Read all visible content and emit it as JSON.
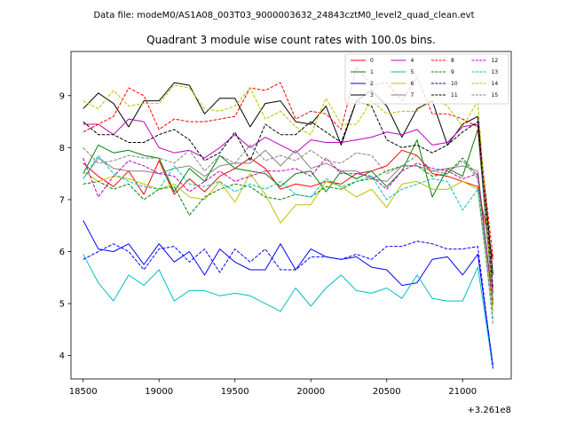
{
  "figure": {
    "suptitle": "Data file: modeM0/AS1A08_003T03_9000003632_24843cztM0_level2_quad_clean.evt"
  },
  "chart_data": {
    "type": "line",
    "title": "Quadrant 3 module wise count rates with 100.0s bins.",
    "xlabel": "",
    "ylabel": "",
    "x_offset_label": "+3.261e8",
    "xlim": [
      18420,
      21320
    ],
    "ylim": [
      3.55,
      9.85
    ],
    "xticks": [
      18500,
      19000,
      19500,
      20000,
      20500,
      21000
    ],
    "yticks": [
      4,
      5,
      6,
      7,
      8,
      9
    ],
    "grid": false,
    "legend": {
      "placement": "top-right",
      "ncol": 4
    },
    "x": [
      18500,
      18600,
      18700,
      18800,
      18900,
      19000,
      19100,
      19200,
      19300,
      19400,
      19500,
      19600,
      19700,
      19800,
      19900,
      20000,
      20100,
      20200,
      20300,
      20400,
      20500,
      20600,
      20700,
      20800,
      20900,
      21000,
      21100,
      21200
    ],
    "series": [
      {
        "name": "0",
        "color": "#ff0000",
        "style": "solid",
        "values": [
          7.7,
          7.45,
          7.25,
          7.55,
          7.1,
          7.75,
          7.1,
          7.4,
          7.15,
          7.45,
          7.6,
          7.8,
          7.6,
          7.2,
          7.3,
          7.25,
          7.35,
          7.3,
          7.5,
          7.55,
          7.65,
          7.95,
          7.85,
          7.5,
          7.45,
          7.35,
          7.25,
          5.85
        ]
      },
      {
        "name": "1",
        "color": "#008000",
        "style": "solid",
        "values": [
          7.5,
          8.05,
          7.9,
          7.95,
          7.85,
          7.8,
          7.15,
          7.6,
          7.35,
          7.85,
          7.6,
          7.55,
          7.5,
          7.25,
          7.5,
          7.55,
          7.15,
          7.55,
          7.4,
          7.55,
          7.25,
          7.55,
          8.15,
          7.05,
          7.6,
          7.45,
          8.35,
          5.05
        ]
      },
      {
        "name": "2",
        "color": "#0000ff",
        "style": "solid",
        "values": [
          6.6,
          6.05,
          6.0,
          6.15,
          5.75,
          6.15,
          5.8,
          6.0,
          5.55,
          6.05,
          5.8,
          5.65,
          5.65,
          6.15,
          5.65,
          6.05,
          5.9,
          5.85,
          5.9,
          5.7,
          5.65,
          5.35,
          5.4,
          5.85,
          5.9,
          5.55,
          5.95,
          3.8
        ]
      },
      {
        "name": "3",
        "color": "#000000",
        "style": "solid",
        "values": [
          8.75,
          9.05,
          8.85,
          8.4,
          8.9,
          8.9,
          9.25,
          9.2,
          8.65,
          8.95,
          8.95,
          8.4,
          8.85,
          8.9,
          8.5,
          8.45,
          8.8,
          8.05,
          8.9,
          9.1,
          8.8,
          8.2,
          8.75,
          8.9,
          8.05,
          8.45,
          8.6,
          5.55
        ]
      },
      {
        "name": "4",
        "color": "#bf00bf",
        "style": "solid",
        "values": [
          8.45,
          8.45,
          8.25,
          8.55,
          8.5,
          8.0,
          7.9,
          7.95,
          7.8,
          8.0,
          8.25,
          8.0,
          8.2,
          8.05,
          7.9,
          8.15,
          8.1,
          8.1,
          8.15,
          8.2,
          8.3,
          8.25,
          8.35,
          8.05,
          8.1,
          8.4,
          8.45,
          5.2
        ]
      },
      {
        "name": "5",
        "color": "#00bfbf",
        "style": "solid",
        "values": [
          5.95,
          5.4,
          5.05,
          5.55,
          5.35,
          5.65,
          5.05,
          5.25,
          5.25,
          5.15,
          5.2,
          5.15,
          5.0,
          4.85,
          5.3,
          4.95,
          5.3,
          5.55,
          5.25,
          5.2,
          5.3,
          5.1,
          5.55,
          5.1,
          5.05,
          5.05,
          5.7,
          3.75
        ]
      },
      {
        "name": "6",
        "color": "#bfbf00",
        "style": "solid",
        "values": [
          7.55,
          7.35,
          7.45,
          7.4,
          7.3,
          7.2,
          7.3,
          7.05,
          7.0,
          7.35,
          6.95,
          7.5,
          7.1,
          6.55,
          6.9,
          6.9,
          7.35,
          7.25,
          7.05,
          7.2,
          6.85,
          7.3,
          7.35,
          7.2,
          7.2,
          7.35,
          7.2,
          4.85
        ]
      },
      {
        "name": "7",
        "color": "#808080",
        "style": "solid",
        "values": [
          7.4,
          7.8,
          7.6,
          7.55,
          7.55,
          7.5,
          7.6,
          7.65,
          7.45,
          7.65,
          7.7,
          7.7,
          7.95,
          7.65,
          7.95,
          7.6,
          7.7,
          7.55,
          7.55,
          7.4,
          7.35,
          7.65,
          7.65,
          7.55,
          7.6,
          7.65,
          7.55,
          5.0
        ]
      },
      {
        "name": "8",
        "color": "#ff0000",
        "style": "dashed",
        "values": [
          8.3,
          8.45,
          8.6,
          9.15,
          9.0,
          8.35,
          8.55,
          8.5,
          8.5,
          8.55,
          8.6,
          9.15,
          9.1,
          9.25,
          8.55,
          8.7,
          8.65,
          8.35,
          9.55,
          9.2,
          9.25,
          8.9,
          9.35,
          8.65,
          8.65,
          8.55,
          8.4,
          5.9
        ]
      },
      {
        "name": "9",
        "color": "#008000",
        "style": "dashed",
        "values": [
          7.3,
          7.35,
          7.2,
          7.3,
          7.0,
          7.2,
          7.25,
          6.7,
          7.05,
          7.2,
          7.3,
          7.25,
          7.05,
          7.0,
          7.1,
          7.05,
          7.25,
          7.2,
          7.35,
          7.4,
          7.55,
          7.65,
          7.65,
          7.45,
          7.5,
          7.8,
          7.45,
          5.0
        ]
      },
      {
        "name": "10",
        "color": "#0000ff",
        "style": "dashed",
        "values": [
          5.85,
          6.0,
          6.15,
          6.0,
          5.65,
          6.05,
          6.1,
          5.8,
          6.05,
          5.6,
          6.05,
          5.8,
          6.05,
          5.65,
          5.65,
          5.9,
          5.9,
          5.85,
          5.95,
          5.85,
          6.1,
          6.1,
          6.2,
          6.15,
          6.05,
          6.05,
          6.1,
          3.75
        ]
      },
      {
        "name": "11",
        "color": "#000000",
        "style": "dashed",
        "values": [
          8.5,
          8.25,
          8.25,
          8.1,
          8.1,
          8.25,
          8.35,
          8.15,
          7.75,
          7.9,
          8.3,
          7.75,
          8.45,
          8.25,
          8.25,
          8.5,
          8.3,
          8.1,
          8.9,
          8.8,
          8.15,
          8.0,
          8.05,
          7.9,
          8.05,
          8.3,
          8.5,
          5.3
        ]
      },
      {
        "name": "12",
        "color": "#bf00bf",
        "style": "dashed",
        "values": [
          7.8,
          7.05,
          7.45,
          7.75,
          7.65,
          7.5,
          7.45,
          7.15,
          7.35,
          7.55,
          7.35,
          7.45,
          7.55,
          7.55,
          7.6,
          7.45,
          7.8,
          7.5,
          7.5,
          7.45,
          7.2,
          7.55,
          7.7,
          7.6,
          7.55,
          7.4,
          7.5,
          4.95
        ]
      },
      {
        "name": "13",
        "color": "#00bfbf",
        "style": "dashed",
        "values": [
          7.4,
          7.85,
          7.5,
          7.35,
          7.25,
          7.2,
          7.65,
          7.3,
          7.25,
          7.35,
          7.15,
          7.3,
          7.2,
          7.35,
          7.1,
          7.05,
          7.4,
          7.25,
          7.35,
          7.45,
          7.0,
          7.2,
          7.3,
          7.4,
          7.35,
          6.8,
          7.2,
          4.7
        ]
      },
      {
        "name": "14",
        "color": "#bfbf00",
        "style": "dashed",
        "values": [
          8.9,
          8.75,
          9.1,
          8.8,
          8.85,
          8.85,
          9.2,
          9.15,
          8.75,
          8.7,
          8.8,
          9.15,
          8.55,
          8.7,
          8.4,
          8.25,
          8.95,
          8.45,
          8.45,
          8.9,
          8.65,
          8.7,
          8.7,
          9.0,
          8.8,
          8.4,
          8.9,
          4.95
        ]
      },
      {
        "name": "15",
        "color": "#808080",
        "style": "dashed",
        "values": [
          8.0,
          7.7,
          7.75,
          7.85,
          7.8,
          7.8,
          7.7,
          7.95,
          7.55,
          7.85,
          7.7,
          8.05,
          7.75,
          7.85,
          7.75,
          7.95,
          7.75,
          7.7,
          7.9,
          7.85,
          7.5,
          7.65,
          7.85,
          7.55,
          7.5,
          7.75,
          7.4,
          4.6
        ]
      }
    ]
  }
}
